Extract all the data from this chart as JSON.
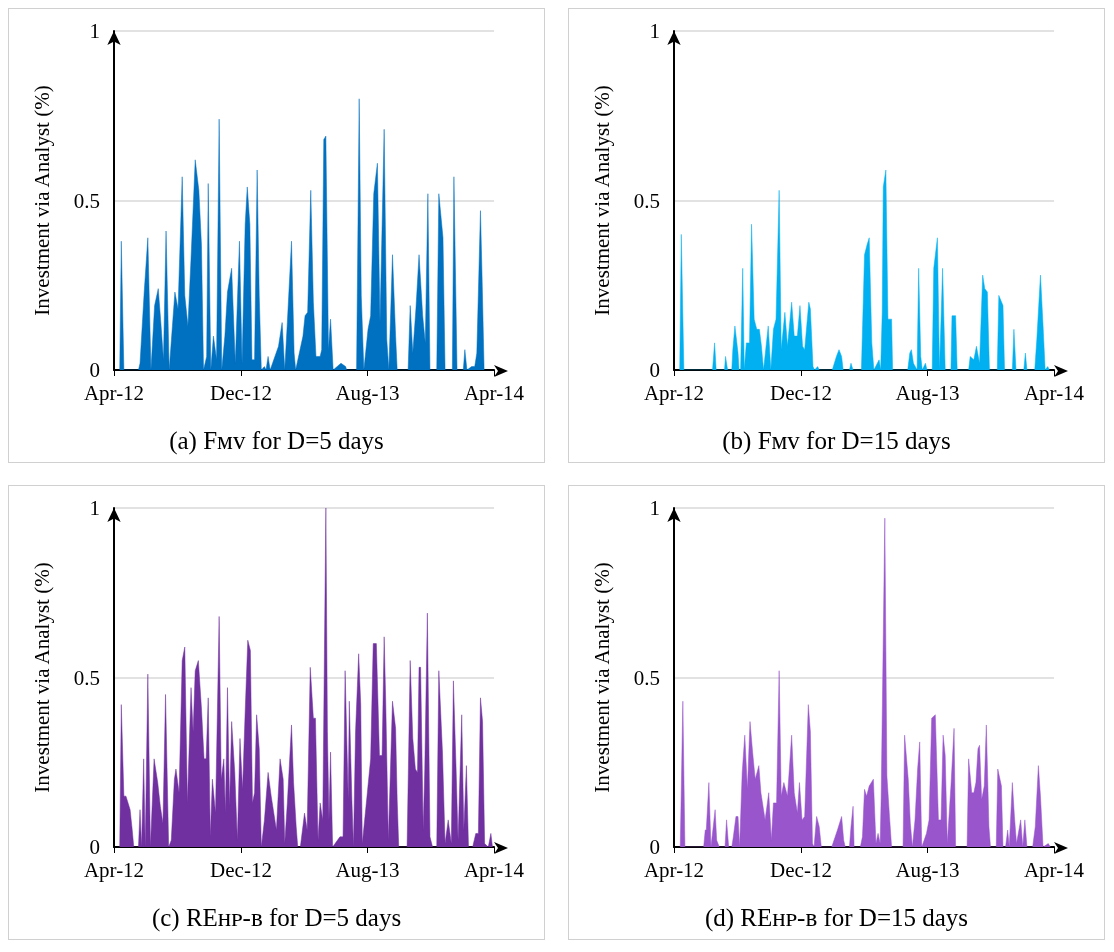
{
  "chart_data": [
    {
      "type": "area",
      "title": "(a) Fᴍᴠ for D=5 days",
      "ylabel": "Investment via Analyst (%)",
      "color": "#0070c0",
      "grid": "y",
      "xlim": [
        "2012-04-01",
        "2014-04-01"
      ],
      "xticks": [
        {
          "value": "2012-04-01",
          "label": "Apr-12"
        },
        {
          "value": "2012-12-01",
          "label": "Dec-12"
        },
        {
          "value": "2013-08-01",
          "label": "Aug-13"
        },
        {
          "value": "2014-04-01",
          "label": "Apr-14"
        }
      ],
      "ylim": [
        0,
        1
      ],
      "yticks": [
        0,
        0.5,
        1
      ],
      "x": [
        "2012-04-12",
        "2012-04-15",
        "2012-04-20",
        "2012-05-18",
        "2012-05-21",
        "2012-05-29",
        "2012-06-05",
        "2012-06-11",
        "2012-06-18",
        "2012-06-25",
        "2012-06-30",
        "2012-07-05",
        "2012-07-10",
        "2012-07-16",
        "2012-07-27",
        "2012-08-02",
        "2012-08-10",
        "2012-08-15",
        "2012-08-21",
        "2012-08-27",
        "2012-09-04",
        "2012-09-11",
        "2012-09-16",
        "2012-09-20",
        "2012-09-26",
        "2012-09-29",
        "2012-10-04",
        "2012-10-09",
        "2012-10-15",
        "2012-10-20",
        "2012-10-25",
        "2012-10-31",
        "2012-11-05",
        "2012-11-13",
        "2012-11-20",
        "2012-11-28",
        "2012-12-03",
        "2012-12-09",
        "2012-12-13",
        "2012-12-18",
        "2012-12-22",
        "2012-12-27",
        "2013-01-01",
        "2013-01-05",
        "2013-01-09",
        "2013-01-15",
        "2013-01-18",
        "2013-01-22",
        "2013-01-26",
        "2013-02-11",
        "2013-02-18",
        "2013-02-23",
        "2013-02-28",
        "2013-03-08",
        "2013-03-13",
        "2013-03-16",
        "2013-03-30",
        "2013-04-03",
        "2013-04-08",
        "2013-04-14",
        "2013-04-19",
        "2013-04-24",
        "2013-05-02",
        "2013-05-05",
        "2013-05-09",
        "2013-05-13",
        "2013-05-18",
        "2013-05-22",
        "2013-05-27",
        "2013-06-11",
        "2013-06-20",
        "2013-06-22",
        "2013-07-11",
        "2013-07-16",
        "2013-07-20",
        "2013-07-25",
        "2013-08-02",
        "2013-08-07",
        "2013-08-13",
        "2013-08-20",
        "2013-08-25",
        "2013-09-02",
        "2013-09-07",
        "2013-09-11",
        "2013-09-18",
        "2013-09-24",
        "2013-09-27",
        "2013-10-18",
        "2013-10-22",
        "2013-10-27",
        "2013-11-02",
        "2013-11-08",
        "2013-11-15",
        "2013-11-20",
        "2013-11-25",
        "2013-11-29",
        "2013-12-12",
        "2013-12-16",
        "2013-12-24",
        "2013-12-28",
        "2014-01-11",
        "2014-01-14",
        "2014-01-18",
        "2014-01-20",
        "2014-02-01",
        "2014-02-04",
        "2014-02-08",
        "2014-02-17",
        "2014-02-23",
        "2014-02-27",
        "2014-03-06",
        "2014-03-09",
        "2014-03-13"
      ],
      "values": [
        0,
        0.38,
        0,
        0,
        0.02,
        0.23,
        0.39,
        0,
        0.19,
        0.24,
        0.14,
        0.03,
        0.41,
        0,
        0.23,
        0.18,
        0.57,
        0.22,
        0.13,
        0.33,
        0.62,
        0.53,
        0.37,
        0,
        0.04,
        0.55,
        0,
        0.1,
        0.03,
        0.74,
        0,
        0.1,
        0.23,
        0.3,
        0.02,
        0.38,
        0.02,
        0.43,
        0.54,
        0.43,
        0.03,
        0.03,
        0.59,
        0.22,
        0,
        0.01,
        0,
        0.04,
        0,
        0.07,
        0.14,
        0,
        0.14,
        0.38,
        0.05,
        0,
        0.1,
        0.16,
        0.17,
        0.53,
        0.2,
        0.04,
        0.04,
        0.06,
        0.68,
        0.69,
        0.06,
        0.15,
        0,
        0.02,
        0.01,
        0,
        0,
        0.8,
        0.22,
        0,
        0.12,
        0.16,
        0.52,
        0.61,
        0.14,
        0.71,
        0.09,
        0,
        0.34,
        0.1,
        0,
        0,
        0.19,
        0.05,
        0.18,
        0.34,
        0.16,
        0.08,
        0.52,
        0,
        0,
        0.52,
        0.39,
        0,
        0,
        0.57,
        0.19,
        0,
        0,
        0.06,
        0,
        0.01,
        0.01,
        0.05,
        0.47,
        0.28,
        0
      ]
    },
    {
      "type": "area",
      "title": "(b) Fᴍᴠ for D=15 days",
      "ylabel": "Investment via Analyst (%)",
      "color": "#00b0f0",
      "grid": "y",
      "xlim": [
        "2012-04-01",
        "2014-04-01"
      ],
      "xticks": [
        {
          "value": "2012-04-01",
          "label": "Apr-12"
        },
        {
          "value": "2012-12-01",
          "label": "Dec-12"
        },
        {
          "value": "2013-08-01",
          "label": "Aug-13"
        },
        {
          "value": "2014-04-01",
          "label": "Apr-14"
        }
      ],
      "ylim": [
        0,
        1
      ],
      "yticks": [
        0,
        0.5,
        1
      ],
      "x": [
        "2012-04-12",
        "2012-04-15",
        "2012-04-20",
        "2012-06-14",
        "2012-06-18",
        "2012-06-21",
        "2012-07-07",
        "2012-07-09",
        "2012-07-13",
        "2012-07-21",
        "2012-07-23",
        "2012-07-27",
        "2012-08-02",
        "2012-08-04",
        "2012-08-07",
        "2012-08-11",
        "2012-08-14",
        "2012-08-18",
        "2012-08-24",
        "2012-08-28",
        "2012-09-02",
        "2012-09-07",
        "2012-09-12",
        "2012-09-16",
        "2012-09-20",
        "2012-09-29",
        "2012-10-04",
        "2012-10-09",
        "2012-10-14",
        "2012-10-20",
        "2012-10-24",
        "2012-10-31",
        "2012-11-05",
        "2012-11-13",
        "2012-11-18",
        "2012-11-24",
        "2012-11-29",
        "2012-12-04",
        "2012-12-08",
        "2012-12-16",
        "2012-12-19",
        "2012-12-24",
        "2012-12-27",
        "2013-01-02",
        "2013-01-05",
        "2013-01-30",
        "2013-02-07",
        "2013-02-12",
        "2013-02-17",
        "2013-02-20",
        "2013-03-04",
        "2013-03-07",
        "2013-03-11",
        "2013-03-27",
        "2013-04-02",
        "2013-04-07",
        "2013-04-11",
        "2013-04-16",
        "2013-04-20",
        "2013-04-30",
        "2013-05-03",
        "2013-05-06",
        "2013-05-08",
        "2013-05-13",
        "2013-05-17",
        "2013-05-24",
        "2013-05-26",
        "2013-06-24",
        "2013-06-28",
        "2013-07-01",
        "2013-07-05",
        "2013-07-12",
        "2013-07-15",
        "2013-07-19",
        "2013-07-22",
        "2013-07-28",
        "2013-07-31",
        "2013-08-10",
        "2013-08-13",
        "2013-08-20",
        "2013-08-24",
        "2013-08-30",
        "2013-09-04",
        "2013-09-15",
        "2013-09-17",
        "2013-09-24",
        "2013-09-27",
        "2013-10-19",
        "2013-10-22",
        "2013-10-29",
        "2013-11-03",
        "2013-11-09",
        "2013-11-15",
        "2013-11-19",
        "2013-11-24",
        "2013-11-28",
        "2013-12-13",
        "2013-12-16",
        "2013-12-24",
        "2013-12-27",
        "2014-01-11",
        "2014-01-14",
        "2014-01-18",
        "2014-02-02",
        "2014-02-05",
        "2014-02-08",
        "2014-02-23",
        "2014-02-27",
        "2014-03-06",
        "2014-03-11",
        "2014-03-15",
        "2014-03-20",
        "2014-03-23"
      ],
      "values": [
        0,
        0.4,
        0,
        0,
        0.08,
        0,
        0,
        0.04,
        0,
        0,
        0.06,
        0.13,
        0.05,
        0,
        0,
        0.3,
        0,
        0.08,
        0.08,
        0.43,
        0.15,
        0.12,
        0.12,
        0.07,
        0,
        0.13,
        0,
        0.12,
        0.15,
        0.53,
        0.06,
        0.17,
        0.07,
        0.2,
        0.1,
        0.1,
        0.19,
        0.07,
        0.06,
        0.2,
        0.18,
        0.01,
        0,
        0.01,
        0,
        0,
        0.04,
        0.06,
        0.04,
        0,
        0,
        0.02,
        0,
        0,
        0.34,
        0.37,
        0.39,
        0.08,
        0,
        0.03,
        0,
        0.17,
        0.54,
        0.59,
        0.15,
        0.15,
        0,
        0,
        0.05,
        0.06,
        0.02,
        0,
        0.3,
        0.04,
        0,
        0.02,
        0,
        0,
        0.3,
        0.39,
        0,
        0.3,
        0,
        0,
        0.16,
        0.16,
        0,
        0,
        0.04,
        0.03,
        0.07,
        0.02,
        0.28,
        0.24,
        0.23,
        0,
        0,
        0.22,
        0.19,
        0,
        0,
        0.12,
        0,
        0,
        0.05,
        0,
        0,
        0.09,
        0.28,
        0.13,
        0,
        0.01,
        0
      ]
    },
    {
      "type": "area",
      "title": "(c) REʜᴘ-ʙ for D=5 days",
      "ylabel": "Investment via Analyst (%)",
      "color": "#7030a0",
      "grid": "y",
      "xlim": [
        "2012-04-01",
        "2014-04-01"
      ],
      "xticks": [
        {
          "value": "2012-04-01",
          "label": "Apr-12"
        },
        {
          "value": "2012-12-01",
          "label": "Dec-12"
        },
        {
          "value": "2013-08-01",
          "label": "Aug-13"
        },
        {
          "value": "2014-04-01",
          "label": "Apr-14"
        }
      ],
      "ylim": [
        0,
        1
      ],
      "yticks": [
        0,
        0.5,
        1
      ],
      "x": [
        "2012-04-12",
        "2012-04-15",
        "2012-04-20",
        "2012-04-24",
        "2012-05-02",
        "2012-05-06",
        "2012-05-09",
        "2012-05-18",
        "2012-05-21",
        "2012-05-24",
        "2012-05-28",
        "2012-05-31",
        "2012-06-05",
        "2012-06-10",
        "2012-06-17",
        "2012-06-24",
        "2012-06-29",
        "2012-07-04",
        "2012-07-09",
        "2012-07-15",
        "2012-07-20",
        "2012-07-26",
        "2012-07-29",
        "2012-08-04",
        "2012-08-10",
        "2012-08-15",
        "2012-08-20",
        "2012-08-27",
        "2012-08-31",
        "2012-09-04",
        "2012-09-10",
        "2012-09-16",
        "2012-09-21",
        "2012-09-25",
        "2012-09-29",
        "2012-10-03",
        "2012-10-07",
        "2012-10-13",
        "2012-10-20",
        "2012-10-24",
        "2012-10-29",
        "2012-11-01",
        "2012-11-05",
        "2012-11-09",
        "2012-11-13",
        "2012-11-19",
        "2012-11-24",
        "2012-11-29",
        "2012-12-04",
        "2012-12-09",
        "2012-12-14",
        "2012-12-19",
        "2012-12-23",
        "2012-12-27",
        "2012-12-31",
        "2013-01-05",
        "2013-01-09",
        "2013-01-15",
        "2013-01-22",
        "2013-01-28",
        "2013-02-07",
        "2013-02-14",
        "2013-02-20",
        "2013-02-23",
        "2013-02-28",
        "2013-03-08",
        "2013-03-12",
        "2013-03-17",
        "2013-03-20",
        "2013-03-25",
        "2013-04-02",
        "2013-04-07",
        "2013-04-13",
        "2013-04-19",
        "2013-04-23",
        "2013-04-28",
        "2013-05-02",
        "2013-05-07",
        "2013-05-13",
        "2013-05-16",
        "2013-05-19",
        "2013-05-22",
        "2013-05-26",
        "2013-06-09",
        "2013-06-15",
        "2013-06-19",
        "2013-06-25",
        "2013-06-27",
        "2013-07-02",
        "2013-07-05",
        "2013-07-09",
        "2013-07-15",
        "2013-07-19",
        "2013-07-22",
        "2013-07-31",
        "2013-08-07",
        "2013-08-12",
        "2013-08-18",
        "2013-08-24",
        "2013-08-29",
        "2013-09-02",
        "2013-09-05",
        "2013-09-10",
        "2013-09-18",
        "2013-09-24",
        "2013-09-27",
        "2013-09-30",
        "2013-10-16",
        "2013-10-22",
        "2013-10-27",
        "2013-11-01",
        "2013-11-05",
        "2013-11-08",
        "2013-11-11",
        "2013-11-16",
        "2013-11-19",
        "2013-11-24",
        "2013-11-29",
        "2013-12-04",
        "2013-12-12",
        "2013-12-16",
        "2013-12-23",
        "2013-12-28",
        "2014-01-03",
        "2014-01-09",
        "2014-01-13",
        "2014-01-18",
        "2014-01-22",
        "2014-01-29",
        "2014-02-02",
        "2014-02-07",
        "2014-02-11",
        "2014-02-19",
        "2014-02-25",
        "2014-03-02",
        "2014-03-06",
        "2014-03-10",
        "2014-03-14",
        "2014-03-21",
        "2014-03-26",
        "2014-03-29"
      ],
      "values": [
        0,
        0.42,
        0.15,
        0.15,
        0.11,
        0.05,
        0,
        0,
        0.11,
        0,
        0.26,
        0,
        0.51,
        0,
        0.26,
        0.19,
        0.12,
        0.07,
        0.45,
        0,
        0.02,
        0.2,
        0.23,
        0.16,
        0.55,
        0.59,
        0.13,
        0.47,
        0.34,
        0.52,
        0.55,
        0.41,
        0.26,
        0.26,
        0.44,
        0.03,
        0.2,
        0.1,
        0.68,
        0.2,
        0.26,
        0.1,
        0.47,
        0.12,
        0.37,
        0.22,
        0.02,
        0.32,
        0.17,
        0.4,
        0.61,
        0.58,
        0.13,
        0.16,
        0.39,
        0.29,
        0,
        0.08,
        0.22,
        0.15,
        0.05,
        0.26,
        0.2,
        0.01,
        0.13,
        0.36,
        0.19,
        0.06,
        0,
        0,
        0.1,
        0.05,
        0.53,
        0.38,
        0.38,
        0.02,
        0.13,
        0.08,
        1,
        0.34,
        0.08,
        0.28,
        0,
        0.03,
        0.03,
        0.52,
        0.14,
        0.43,
        0.14,
        0,
        0.34,
        0.57,
        0.42,
        0.01,
        0.15,
        0.26,
        0.6,
        0.6,
        0.27,
        0.27,
        0.62,
        0.43,
        0.02,
        0.43,
        0.35,
        0.14,
        0,
        0,
        0.55,
        0.32,
        0.23,
        0.22,
        0.53,
        0.53,
        0.05,
        0.23,
        0.69,
        0.03,
        0,
        0,
        0.52,
        0.28,
        0.01,
        0.08,
        0.01,
        0.49,
        0.24,
        0.02,
        0.39,
        0.05,
        0.24,
        0,
        0,
        0.04,
        0.04,
        0.44,
        0.37,
        0.01,
        0,
        0.04,
        0
      ]
    },
    {
      "type": "area",
      "title": "(d) REʜᴘ-ʙ for D=15 days",
      "ylabel": "Investment via Analyst (%)",
      "color": "#9955cc",
      "grid": "y",
      "xlim": [
        "2012-04-01",
        "2014-04-01"
      ],
      "xticks": [
        {
          "value": "2012-04-01",
          "label": "Apr-12"
        },
        {
          "value": "2012-12-01",
          "label": "Dec-12"
        },
        {
          "value": "2013-08-01",
          "label": "Aug-13"
        },
        {
          "value": "2014-04-01",
          "label": "Apr-14"
        }
      ],
      "ylim": [
        0,
        1
      ],
      "yticks": [
        0,
        0.5,
        1
      ],
      "x": [
        "2012-04-13",
        "2012-04-18",
        "2012-04-22",
        "2012-05-28",
        "2012-05-31",
        "2012-06-02",
        "2012-06-07",
        "2012-06-11",
        "2012-06-19",
        "2012-06-22",
        "2012-06-27",
        "2012-07-08",
        "2012-07-11",
        "2012-07-15",
        "2012-07-21",
        "2012-07-24",
        "2012-07-29",
        "2012-08-02",
        "2012-08-05",
        "2012-08-10",
        "2012-08-15",
        "2012-08-20",
        "2012-08-25",
        "2012-08-30",
        "2012-09-04",
        "2012-09-11",
        "2012-09-15",
        "2012-09-23",
        "2012-09-30",
        "2012-10-05",
        "2012-10-09",
        "2012-10-15",
        "2012-10-20",
        "2012-10-24",
        "2012-10-29",
        "2012-11-05",
        "2012-11-13",
        "2012-11-18",
        "2012-11-24",
        "2012-11-28",
        "2012-12-03",
        "2012-12-08",
        "2012-12-15",
        "2012-12-19",
        "2012-12-23",
        "2012-12-26",
        "2012-12-31",
        "2013-01-05",
        "2013-01-09",
        "2013-01-29",
        "2013-02-09",
        "2013-02-17",
        "2013-02-21",
        "2013-02-24",
        "2013-03-04",
        "2013-03-07",
        "2013-03-11",
        "2013-03-13",
        "2013-03-25",
        "2013-03-29",
        "2013-04-02",
        "2013-04-06",
        "2013-04-11",
        "2013-04-19",
        "2013-04-24",
        "2013-04-28",
        "2013-05-02",
        "2013-05-04",
        "2013-05-11",
        "2013-05-15",
        "2013-05-20",
        "2013-05-24",
        "2013-06-15",
        "2013-06-18",
        "2013-06-25",
        "2013-06-29",
        "2013-07-03",
        "2013-07-08",
        "2013-07-13",
        "2013-07-17",
        "2013-07-21",
        "2013-07-30",
        "2013-08-04",
        "2013-08-09",
        "2013-08-16",
        "2013-08-22",
        "2013-08-27",
        "2013-08-31",
        "2013-09-04",
        "2013-09-08",
        "2013-09-15",
        "2013-09-21",
        "2013-09-24",
        "2013-10-16",
        "2013-10-19",
        "2013-10-25",
        "2013-10-29",
        "2013-11-02",
        "2013-11-06",
        "2013-11-09",
        "2013-11-13",
        "2013-11-18",
        "2013-11-22",
        "2013-11-27",
        "2013-11-30",
        "2013-12-11",
        "2013-12-14",
        "2013-12-21",
        "2013-12-24",
        "2013-12-29",
        "2014-01-02",
        "2014-01-05",
        "2014-01-11",
        "2014-01-15",
        "2014-01-19",
        "2014-01-27",
        "2014-01-31",
        "2014-02-04",
        "2014-02-08",
        "2014-02-19",
        "2014-02-24",
        "2014-03-02",
        "2014-03-06",
        "2014-03-11",
        "2014-03-21",
        "2014-03-25"
      ],
      "values": [
        0,
        0.43,
        0,
        0,
        0.05,
        0.05,
        0.19,
        0,
        0.11,
        0.02,
        0,
        0,
        0.08,
        0,
        0,
        0.03,
        0.09,
        0.09,
        0,
        0.22,
        0.33,
        0.17,
        0.37,
        0.28,
        0.2,
        0.24,
        0.16,
        0.08,
        0.16,
        0.02,
        0.13,
        0.13,
        0.52,
        0.15,
        0.19,
        0.15,
        0.33,
        0.16,
        0.1,
        0.19,
        0.08,
        0.09,
        0.42,
        0.34,
        0.01,
        0,
        0.09,
        0.06,
        0,
        0,
        0.05,
        0.09,
        0.02,
        0,
        0,
        0.06,
        0.12,
        0,
        0,
        0.03,
        0.17,
        0.15,
        0.18,
        0.2,
        0.01,
        0.04,
        0.01,
        0.15,
        0.97,
        0.21,
        0.09,
        0,
        0,
        0.33,
        0.2,
        0.07,
        0,
        0.08,
        0.23,
        0.31,
        0,
        0.04,
        0.08,
        0.38,
        0.39,
        0.08,
        0.08,
        0.33,
        0.27,
        0.01,
        0.18,
        0.35,
        0,
        0,
        0.26,
        0.16,
        0.16,
        0.19,
        0.29,
        0.3,
        0.14,
        0.18,
        0.36,
        0.06,
        0,
        0,
        0.23,
        0.18,
        0,
        0,
        0.05,
        0,
        0.19,
        0.09,
        0.01,
        0.08,
        0,
        0.08,
        0,
        0,
        0.06,
        0.24,
        0.15,
        0,
        0.01,
        0
      ]
    }
  ]
}
